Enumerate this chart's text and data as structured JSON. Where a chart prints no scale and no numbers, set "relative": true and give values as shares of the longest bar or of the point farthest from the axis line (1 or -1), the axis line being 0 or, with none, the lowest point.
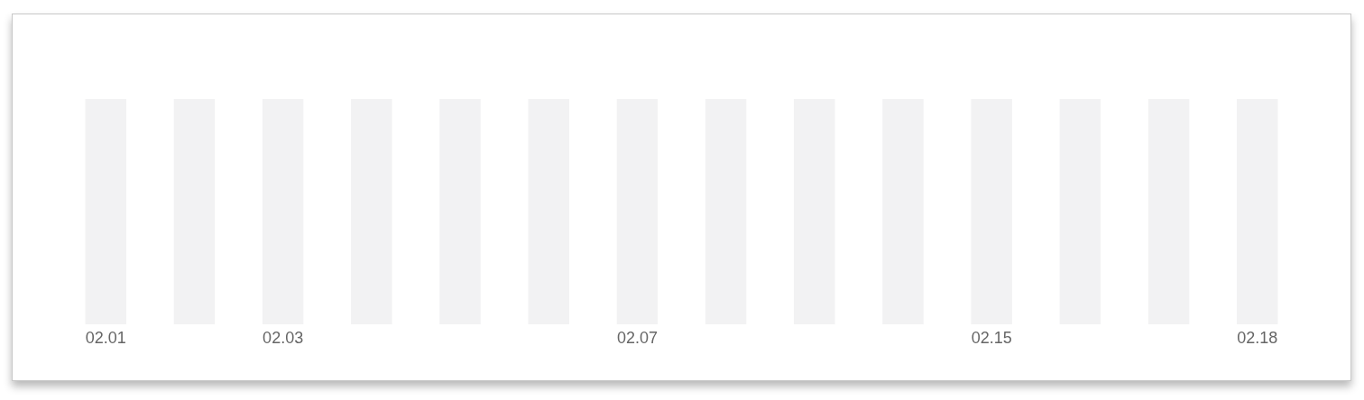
{
  "chart_data": {
    "type": "bar",
    "categories": [
      "02.01",
      null,
      "02.03",
      null,
      null,
      null,
      "02.07",
      null,
      null,
      null,
      "02.15",
      null,
      null,
      "02.18"
    ],
    "values": [
      1,
      1,
      1,
      1,
      1,
      1,
      1,
      1,
      1,
      1,
      1,
      1,
      1,
      1
    ],
    "color": "#f2f2f3",
    "relative": true
  }
}
